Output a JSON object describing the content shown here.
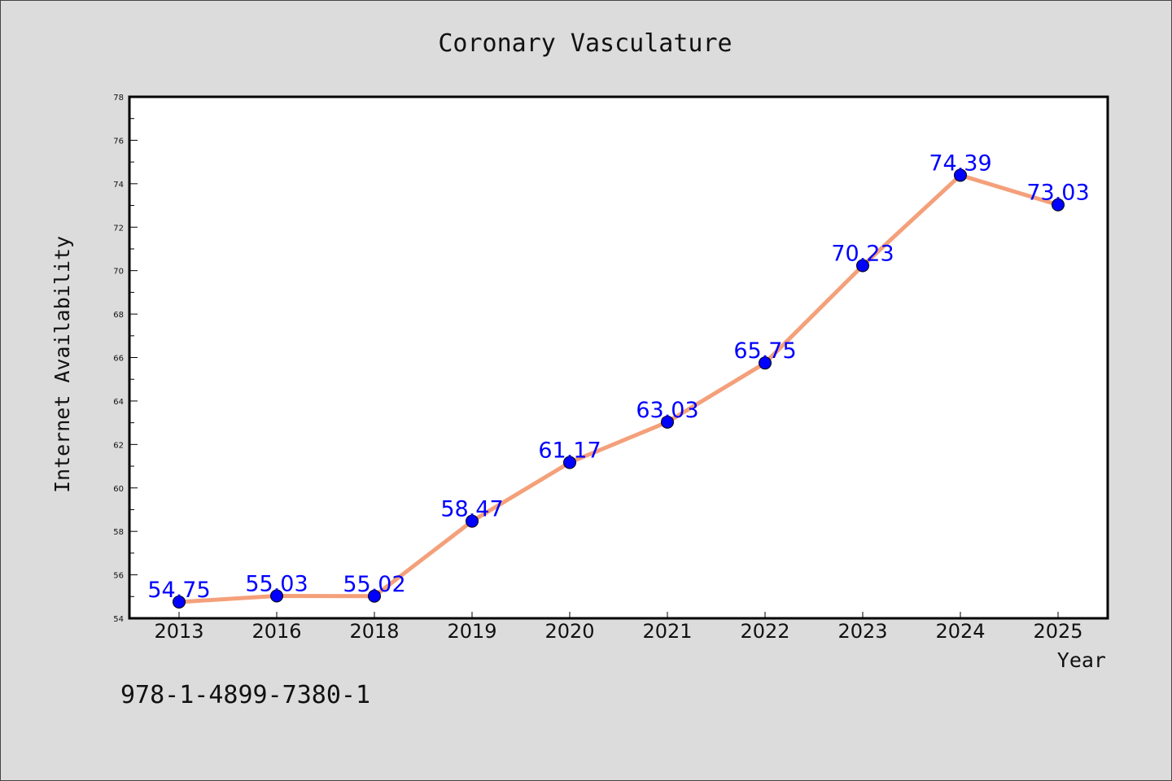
{
  "chart_data": {
    "type": "line",
    "title": "Coronary Vasculature",
    "xlabel": "Year",
    "ylabel": "Internet Availability",
    "categories": [
      "2013",
      "2016",
      "2018",
      "2019",
      "2020",
      "2021",
      "2022",
      "2023",
      "2024",
      "2025"
    ],
    "series": [
      {
        "values": [
          54.75,
          55.03,
          55.02,
          58.47,
          61.17,
          63.03,
          65.75,
          70.23,
          74.39,
          73.03
        ],
        "labels": [
          "54.75",
          "55.03",
          "55.02",
          "58.47",
          "61.17",
          "63.03",
          "65.75",
          "70.23",
          "74.39",
          "73.03"
        ],
        "line_color": "#f4a07a",
        "marker_color": "#0000ff"
      }
    ],
    "ylim": [
      54,
      78
    ],
    "yticks": [
      "54",
      "56",
      "58",
      "60",
      "62",
      "64",
      "66",
      "68",
      "70",
      "72",
      "74",
      "76",
      "78"
    ],
    "grid": false,
    "legend": "none"
  },
  "footnote": "978-1-4899-7380-1",
  "colors": {
    "background": "#dcdcdc",
    "plot_background": "#ffffff",
    "axes": "#000000"
  }
}
